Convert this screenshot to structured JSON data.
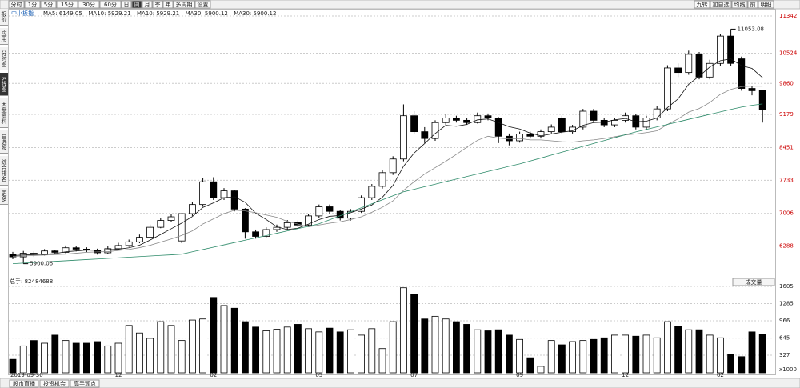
{
  "toolbar": {
    "tabs": [
      "分时",
      "1分",
      "5分",
      "15分",
      "30分",
      "60分",
      "日",
      "周",
      "月",
      "季",
      "年",
      "多周期",
      "设置"
    ],
    "active": 7,
    "right": [
      "九转",
      "加自选",
      "均线",
      "前",
      "明细"
    ]
  },
  "sidebar": {
    "items": [
      "报价",
      "应用",
      "分时图",
      "K线图",
      "大盘资料",
      "自选股",
      "综合排名",
      "更多"
    ],
    "active": 3
  },
  "bottom_tabs": [
    "股市直播",
    "投资机会",
    "高手观点"
  ],
  "chart_data": {
    "type": "candlestick",
    "name": "中小板指",
    "legend": [
      "MA5: 6149.05",
      "MA10: 5929.21",
      "MA10: 5929.21",
      "MA30: 5900.12",
      "MA30: 5900.12"
    ],
    "legend_colors": [
      "#000000",
      "#000000",
      "#000000",
      "#2e8b6a",
      "#2e8b6a"
    ],
    "categories": [
      "2019-09-30",
      null,
      null,
      null,
      null,
      null,
      null,
      null,
      null,
      null,
      "12",
      null,
      null,
      null,
      null,
      null,
      null,
      null,
      null,
      "02",
      null,
      null,
      null,
      null,
      null,
      null,
      null,
      null,
      null,
      "05",
      null,
      null,
      null,
      null,
      null,
      null,
      null,
      null,
      "07",
      null,
      null,
      null,
      null,
      null,
      null,
      null,
      null,
      null,
      "09",
      null,
      null,
      null,
      null,
      null,
      null,
      null,
      null,
      null,
      "12",
      null,
      null,
      null,
      null,
      null,
      null,
      null,
      null,
      "02",
      null,
      null,
      null,
      null
    ],
    "open": [
      6100,
      6050,
      6130,
      6100,
      6180,
      6150,
      6250,
      6220,
      6200,
      6140,
      6230,
      6300,
      6380,
      6480,
      6700,
      6850,
      6400,
      7000,
      7200,
      7700,
      7350,
      7500,
      7100,
      6600,
      6500,
      6650,
      6700,
      6800,
      6750,
      6950,
      7150,
      7050,
      6900,
      7050,
      7350,
      7600,
      7900,
      8200,
      9150,
      8800,
      8650,
      9000,
      9100,
      9050,
      9000,
      9150,
      9100,
      8700,
      8600,
      8750,
      8700,
      8800,
      9100,
      8800,
      8900,
      9250,
      9050,
      8950,
      9050,
      9150,
      8900,
      9100,
      9300,
      10200,
      10100,
      10500,
      10000,
      10300,
      10900,
      10400,
      9750,
      9700
    ],
    "high": [
      6160,
      6180,
      6170,
      6220,
      6210,
      6300,
      6280,
      6260,
      6230,
      6280,
      6360,
      6430,
      6540,
      6760,
      6910,
      6990,
      7010,
      7260,
      7780,
      7800,
      7560,
      7520,
      7120,
      6650,
      6700,
      6760,
      6860,
      6850,
      7000,
      7200,
      7200,
      7080,
      7100,
      7400,
      7650,
      7950,
      8260,
      9400,
      9250,
      8900,
      9050,
      9180,
      9150,
      9100,
      9220,
      9200,
      9120,
      8760,
      8800,
      8800,
      8850,
      8960,
      9150,
      8950,
      9300,
      9300,
      9100,
      9100,
      9220,
      9180,
      9150,
      9360,
      10260,
      10300,
      10580,
      10550,
      10380,
      10950,
      11053.08,
      10450,
      9800,
      9720
    ],
    "low": [
      6000,
      5900.06,
      6050,
      6080,
      6100,
      6130,
      6170,
      6150,
      6100,
      6120,
      6200,
      6270,
      6350,
      6460,
      6680,
      6820,
      6350,
      6950,
      7150,
      7300,
      7300,
      7050,
      6450,
      6450,
      6480,
      6600,
      6650,
      6700,
      6720,
      6900,
      7000,
      6850,
      6850,
      7020,
      7300,
      7550,
      7850,
      8150,
      8750,
      8550,
      8600,
      8950,
      9000,
      8950,
      8980,
      9050,
      8550,
      8500,
      8560,
      8650,
      8650,
      8760,
      8760,
      8760,
      8850,
      9000,
      8900,
      8900,
      9000,
      8850,
      8850,
      9050,
      9250,
      10000,
      10050,
      9950,
      9950,
      10250,
      10250,
      9700,
      9600,
      9000
    ],
    "close": [
      6050,
      6130,
      6100,
      6180,
      6150,
      6250,
      6220,
      6200,
      6140,
      6230,
      6300,
      6380,
      6480,
      6700,
      6850,
      6930,
      7000,
      7200,
      7700,
      7350,
      7500,
      7100,
      6600,
      6500,
      6650,
      6700,
      6800,
      6750,
      6950,
      7150,
      7050,
      6900,
      7050,
      7350,
      7600,
      7900,
      8200,
      9150,
      8800,
      8650,
      9000,
      9100,
      9050,
      9000,
      9150,
      9100,
      8700,
      8600,
      8750,
      8700,
      8800,
      8900,
      8800,
      8900,
      9250,
      9050,
      8950,
      9050,
      9150,
      8900,
      9100,
      9300,
      10200,
      10100,
      10500,
      10000,
      10300,
      10900,
      10300,
      9750,
      9700,
      9280
    ],
    "high_label": "11053.08",
    "low_label": "5900.06",
    "series": [
      {
        "name": "MA5",
        "color": "#111111",
        "values": [
          6080,
          6090,
          6100,
          6110,
          6122,
          6162,
          6180,
          6200,
          6192,
          6208,
          6218,
          6250,
          6306,
          6418,
          6542,
          6668,
          6792,
          6936,
          7136,
          7236,
          7350,
          7370,
          7250,
          7010,
          6870,
          6710,
          6650,
          6680,
          6770,
          6870,
          6940,
          6960,
          7020,
          7100,
          7190,
          7360,
          7620,
          8040,
          8330,
          8540,
          8760,
          8940,
          8920,
          8960,
          9060,
          9080,
          9000,
          8910,
          8860,
          8770,
          8710,
          8750,
          8790,
          8820,
          8940,
          9000,
          9010,
          9060,
          9090,
          9020,
          9030,
          9100,
          9330,
          9520,
          9840,
          10020,
          10220,
          10360,
          10400,
          10250,
          10190,
          9986
        ]
      },
      {
        "name": "MA10",
        "color": "#888888",
        "values": [
          6060,
          6070,
          6080,
          6090,
          6100,
          6110,
          6130,
          6150,
          6160,
          6165,
          6190,
          6215,
          6253,
          6305,
          6375,
          6443,
          6521,
          6621,
          6773,
          6885,
          7000,
          7075,
          7060,
          7020,
          6970,
          6920,
          6830,
          6770,
          6710,
          6750,
          6790,
          6820,
          6870,
          6930,
          7030,
          7140,
          7280,
          7510,
          7700,
          7870,
          8010,
          8150,
          8300,
          8460,
          8610,
          8700,
          8660,
          8640,
          8650,
          8620,
          8620,
          8600,
          8580,
          8570,
          8600,
          8620,
          8650,
          8690,
          8730,
          8750,
          8780,
          8820,
          8960,
          9080,
          9230,
          9310,
          9440,
          9620,
          9730,
          9790,
          9800,
          9800
        ]
      },
      {
        "name": "MA30",
        "color": "#2e8b6a",
        "values": [
          5900,
          5913,
          5926,
          5939,
          5952,
          5965,
          5978,
          5991,
          6004,
          6017,
          6030,
          6043,
          6056,
          6069,
          6082,
          6095,
          6110,
          6161,
          6212,
          6263,
          6314,
          6365,
          6416,
          6467,
          6518,
          6569,
          6620,
          6671,
          6722,
          6776,
          6864,
          6952,
          7040,
          7128,
          7216,
          7304,
          7392,
          7479,
          7535,
          7591,
          7647,
          7703,
          7759,
          7815,
          7871,
          7927,
          7983,
          8039,
          8093,
          8157,
          8221,
          8285,
          8349,
          8413,
          8477,
          8541,
          8605,
          8669,
          8733,
          8796,
          8851,
          8906,
          8961,
          9016,
          9071,
          9126,
          9181,
          9235,
          9290,
          9340,
          9380,
          9410
        ]
      }
    ],
    "ylim": [
      5630,
      11482
    ],
    "yticks": [
      11342,
      10524,
      9860,
      9179,
      8451,
      7733,
      7006,
      6288
    ],
    "grid": true,
    "volume": {
      "title": "总手: 82484688",
      "button": "成交量",
      "unit": "x1000",
      "values": [
        250,
        500,
        600,
        550,
        700,
        600,
        550,
        550,
        580,
        500,
        550,
        880,
        740,
        640,
        950,
        880,
        600,
        980,
        1000,
        1400,
        1250,
        1200,
        950,
        850,
        780,
        810,
        850,
        900,
        820,
        760,
        830,
        760,
        800,
        700,
        820,
        450,
        950,
        1580,
        1460,
        1000,
        1050,
        1000,
        950,
        900,
        800,
        780,
        800,
        700,
        620,
        280,
        120,
        600,
        520,
        580,
        600,
        620,
        650,
        700,
        700,
        680,
        700,
        650,
        950,
        870,
        800,
        800,
        700,
        650,
        350,
        300,
        760,
        720
      ],
      "ylim": [
        0,
        1650
      ],
      "yticks": [
        1605,
        1285,
        966,
        645,
        327
      ]
    }
  }
}
